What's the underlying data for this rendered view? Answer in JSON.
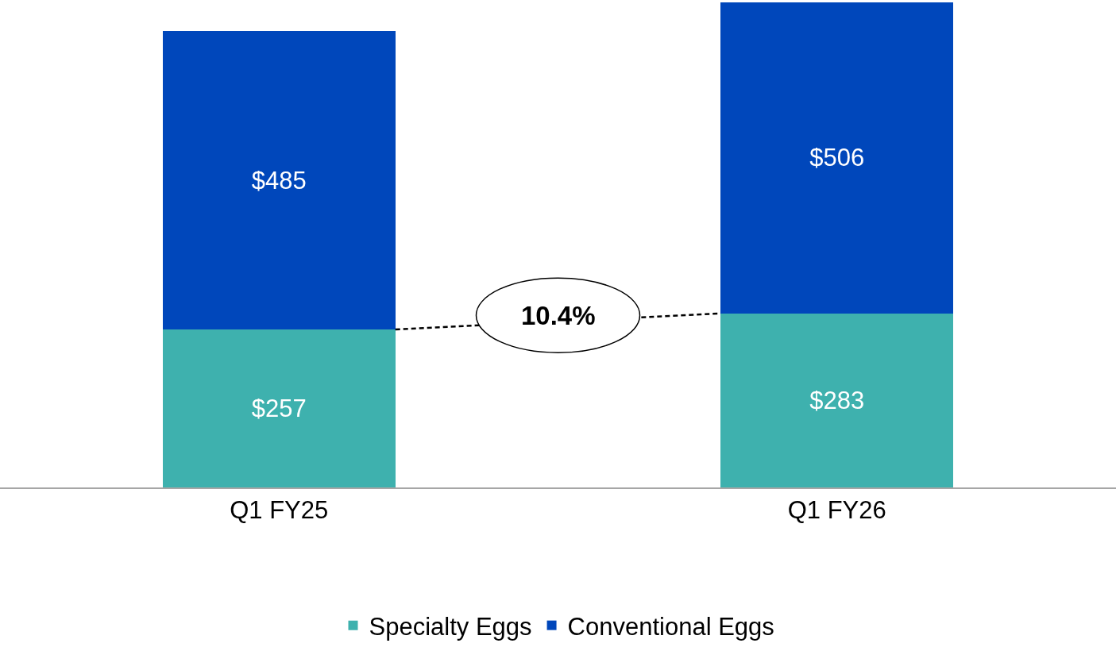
{
  "chart_data": {
    "type": "bar",
    "stacked": true,
    "categories": [
      "Q1 FY25",
      "Q1 FY26"
    ],
    "series": [
      {
        "name": "Specialty Eggs",
        "color": "#3eb1ae",
        "values": [
          257,
          283
        ],
        "value_labels": [
          "$257",
          "$283"
        ]
      },
      {
        "name": "Conventional Eggs",
        "color": "#0047bb",
        "values": [
          485,
          506
        ],
        "value_labels": [
          "$485",
          "$506"
        ]
      }
    ],
    "ylim": [
      0,
      789
    ],
    "tick_labels": "x",
    "grid": false,
    "legend": "bottom",
    "annotations": [
      "10.4%"
    ]
  }
}
